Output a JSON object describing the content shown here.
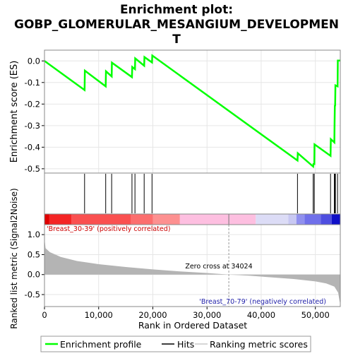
{
  "chart_data": [
    {
      "type": "line",
      "title_line1": "Enrichment plot:",
      "title_line2": "GOBP_GLOMERULAR_MESANGIUM_DEVELOPMEN",
      "title_line3": "T",
      "ylabel": "Enrichment score (ES)",
      "ylim": [
        -0.52,
        0.05
      ],
      "yticks": [
        0.0,
        -0.1,
        -0.2,
        -0.3,
        -0.4,
        -0.5
      ],
      "ytick_labels": [
        "0.0",
        "-0.1",
        "-0.2",
        "-0.3",
        "-0.4",
        "-0.5"
      ],
      "xlim": [
        0,
        54600
      ],
      "grid": true,
      "line_color": "#00ff00",
      "series": [
        {
          "points": [
            [
              0,
              0.0
            ],
            [
              7400,
              -0.135
            ],
            [
              7450,
              -0.045
            ],
            [
              11300,
              -0.118
            ],
            [
              11350,
              -0.048
            ],
            [
              12400,
              -0.072
            ],
            [
              12450,
              -0.008
            ],
            [
              16150,
              -0.075
            ],
            [
              16200,
              -0.028
            ],
            [
              16700,
              -0.038
            ],
            [
              16750,
              0.012
            ],
            [
              18400,
              -0.022
            ],
            [
              18450,
              0.018
            ],
            [
              19850,
              -0.007
            ],
            [
              19900,
              0.025
            ],
            [
              46700,
              -0.462
            ],
            [
              46750,
              -0.428
            ],
            [
              49600,
              -0.49
            ],
            [
              49650,
              -0.478
            ],
            [
              49800,
              -0.478
            ],
            [
              49850,
              -0.387
            ],
            [
              52800,
              -0.44
            ],
            [
              52850,
              -0.363
            ],
            [
              53500,
              -0.378
            ],
            [
              53550,
              -0.29
            ],
            [
              53600,
              -0.205
            ],
            [
              53650,
              -0.21
            ],
            [
              53700,
              -0.113
            ],
            [
              54100,
              -0.118
            ],
            [
              54150,
              0.002
            ],
            [
              54600,
              0.002
            ]
          ]
        }
      ]
    },
    {
      "type": "hits",
      "hit_positions": [
        7400,
        11300,
        12400,
        16150,
        16700,
        18400,
        19850,
        46700,
        49600,
        49800,
        52800,
        53500,
        53600,
        53700,
        54100
      ],
      "bar_color": "#000000"
    },
    {
      "type": "heatmap",
      "segments": [
        {
          "from": 0,
          "to": 900,
          "color": "#e00000"
        },
        {
          "from": 900,
          "to": 5000,
          "color": "#f42525"
        },
        {
          "from": 5000,
          "to": 16000,
          "color": "#fa5050"
        },
        {
          "from": 16000,
          "to": 20000,
          "color": "#fc6e6e"
        },
        {
          "from": 20000,
          "to": 25000,
          "color": "#fd9090"
        },
        {
          "from": 25000,
          "to": 39000,
          "color": "#fdbfe0"
        },
        {
          "from": 39000,
          "to": 45000,
          "color": "#dcdcf6"
        },
        {
          "from": 45000,
          "to": 46500,
          "color": "#c8c8f2"
        },
        {
          "from": 46500,
          "to": 48000,
          "color": "#9090ee"
        },
        {
          "from": 48000,
          "to": 51000,
          "color": "#7070ea"
        },
        {
          "from": 51000,
          "to": 53000,
          "color": "#4e4ee0"
        },
        {
          "from": 53000,
          "to": 54600,
          "color": "#1010c8"
        }
      ],
      "marker": 34024
    },
    {
      "type": "area",
      "ylabel": "Ranked list metric (Signal2Noise)",
      "xlabel": "Rank in Ordered Dataset",
      "ylim": [
        -0.8,
        1.25
      ],
      "yticks": [
        1.0,
        0.5,
        0.0,
        -0.5
      ],
      "ytick_labels": [
        "1.0",
        "0.5",
        "0.0",
        "-0.5"
      ],
      "xticks": [
        0,
        10000,
        20000,
        30000,
        40000,
        50000
      ],
      "xtick_labels": [
        "0",
        "10,000",
        "20,000",
        "30,000",
        "40,000",
        "50,000"
      ],
      "fill_color": "#b4b4b4",
      "grid": true,
      "points": [
        [
          0,
          0.9
        ],
        [
          200,
          0.66
        ],
        [
          1000,
          0.56
        ],
        [
          3000,
          0.44
        ],
        [
          6000,
          0.34
        ],
        [
          10000,
          0.26
        ],
        [
          15000,
          0.19
        ],
        [
          20000,
          0.13
        ],
        [
          25000,
          0.08
        ],
        [
          30000,
          0.04
        ],
        [
          34024,
          0.0
        ],
        [
          38000,
          -0.03
        ],
        [
          42000,
          -0.07
        ],
        [
          46000,
          -0.11
        ],
        [
          50000,
          -0.17
        ],
        [
          52000,
          -0.22
        ],
        [
          53500,
          -0.3
        ],
        [
          54200,
          -0.45
        ],
        [
          54500,
          -0.68
        ],
        [
          54600,
          -0.72
        ]
      ],
      "annotations": {
        "positive_label": "'Breast_30-39' (positively correlated)",
        "negative_label": "'Breast_70-79' (negatively correlated)",
        "zero_cross": "Zero cross at 34024"
      }
    }
  ],
  "legend": {
    "items": [
      {
        "label": "Enrichment profile",
        "color": "#00ff00"
      },
      {
        "label": "Hits",
        "color": "#000000"
      },
      {
        "label": "Ranking metric scores",
        "color": "#c8c8c8"
      }
    ]
  }
}
